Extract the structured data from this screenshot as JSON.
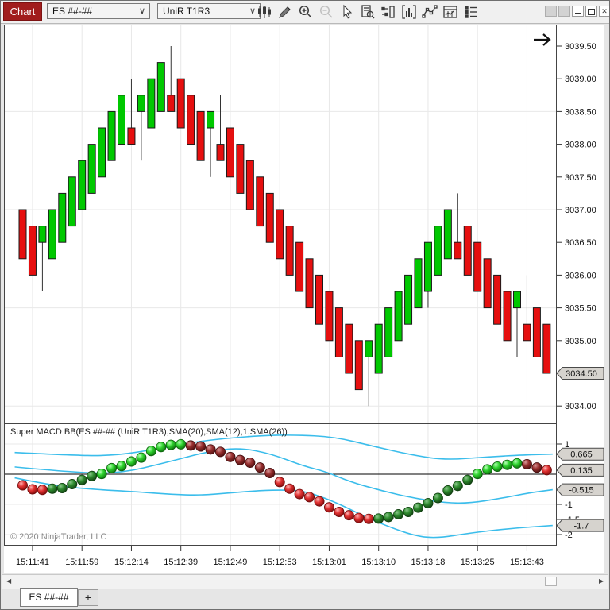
{
  "window": {
    "buttons": [
      {
        "name": "blank-left",
        "glyph": ""
      },
      {
        "name": "blank-right",
        "glyph": ""
      },
      {
        "name": "minimize",
        "glyph": "minimize"
      },
      {
        "name": "restore",
        "glyph": "restore"
      },
      {
        "name": "close",
        "glyph": "x"
      }
    ]
  },
  "toolbar": {
    "chart_tab_label": "Chart",
    "instrument_value": "ES ##-##",
    "bartype_value": "UniR T1R3",
    "chevron": "∨",
    "icons": [
      "chart-style",
      "drawing-tools",
      "zoom-in",
      "zoom-out",
      "pointer",
      "data-box",
      "chart-trader",
      "indicators",
      "draw-line",
      "chart-properties",
      "data-series"
    ]
  },
  "tabs": {
    "active_label": "ES ##-##",
    "add_label": "+"
  },
  "indicator_panel": {
    "label": "Super MACD BB(ES ##-## (UniR T1R3),SMA(20),SMA(12),1,SMA(26))",
    "copyright": "© 2020 NinjaTrader, LLC"
  },
  "chart_data": {
    "type": "candlestick",
    "instrument": "ES ##-##",
    "bar_type": "UniR T1R3",
    "colors": {
      "up": "#00c800",
      "down": "#e60f0f",
      "band": "#3bbdeb",
      "grid": "#e8e8e8",
      "marker_fill": "#d6d3ce"
    },
    "price_axis": {
      "min": 3034.0,
      "max": 3039.5,
      "tick_step": 0.5,
      "gridlines": [
        3038.5,
        3037.0,
        3035.5,
        3034.0
      ],
      "marker_value": 3034.5,
      "marker_label": "3034.50"
    },
    "bars": [
      [
        3037.0,
        3037.0,
        3036.25,
        3036.25
      ],
      [
        3036.75,
        3036.75,
        3036.0,
        3036.0
      ],
      [
        3036.5,
        3036.75,
        3035.75,
        3036.75
      ],
      [
        3036.25,
        3037.0,
        3036.25,
        3037.0
      ],
      [
        3036.5,
        3037.25,
        3036.5,
        3037.25
      ],
      [
        3036.75,
        3037.5,
        3036.75,
        3037.5
      ],
      [
        3037.0,
        3037.75,
        3037.0,
        3037.75
      ],
      [
        3037.25,
        3038.0,
        3037.25,
        3038.0
      ],
      [
        3037.5,
        3038.25,
        3037.5,
        3038.25
      ],
      [
        3037.75,
        3038.5,
        3037.75,
        3038.5
      ],
      [
        3038.0,
        3038.75,
        3038.0,
        3038.75
      ],
      [
        3038.25,
        3039.0,
        3038.0,
        3038.0
      ],
      [
        3038.5,
        3038.75,
        3037.75,
        3038.75
      ],
      [
        3038.25,
        3039.0,
        3038.25,
        3039.0
      ],
      [
        3038.5,
        3039.25,
        3038.5,
        3039.25
      ],
      [
        3038.75,
        3039.5,
        3038.5,
        3038.5
      ],
      [
        3039.0,
        3039.0,
        3038.25,
        3038.25
      ],
      [
        3038.75,
        3038.75,
        3038.0,
        3038.0
      ],
      [
        3038.5,
        3038.5,
        3037.75,
        3037.75
      ],
      [
        3038.25,
        3038.5,
        3037.5,
        3038.5
      ],
      [
        3038.0,
        3038.75,
        3037.75,
        3037.75
      ],
      [
        3038.25,
        3038.25,
        3037.5,
        3037.5
      ],
      [
        3038.0,
        3038.0,
        3037.25,
        3037.25
      ],
      [
        3037.75,
        3037.75,
        3037.0,
        3037.0
      ],
      [
        3037.5,
        3037.5,
        3036.75,
        3036.75
      ],
      [
        3037.25,
        3037.25,
        3036.5,
        3036.5
      ],
      [
        3037.0,
        3037.0,
        3036.25,
        3036.25
      ],
      [
        3036.75,
        3036.75,
        3036.0,
        3036.0
      ],
      [
        3036.5,
        3036.5,
        3035.75,
        3035.75
      ],
      [
        3036.25,
        3036.25,
        3035.5,
        3035.5
      ],
      [
        3036.0,
        3036.0,
        3035.25,
        3035.25
      ],
      [
        3035.75,
        3035.75,
        3035.0,
        3035.0
      ],
      [
        3035.5,
        3035.5,
        3034.75,
        3034.75
      ],
      [
        3035.25,
        3035.25,
        3034.5,
        3034.5
      ],
      [
        3035.0,
        3035.0,
        3034.25,
        3034.25
      ],
      [
        3034.75,
        3035.0,
        3034.0,
        3035.0
      ],
      [
        3034.5,
        3035.25,
        3034.5,
        3035.25
      ],
      [
        3034.75,
        3035.5,
        3034.75,
        3035.5
      ],
      [
        3035.0,
        3035.75,
        3035.0,
        3035.75
      ],
      [
        3035.25,
        3036.0,
        3035.25,
        3036.0
      ],
      [
        3035.5,
        3036.25,
        3035.5,
        3036.25
      ],
      [
        3035.75,
        3036.5,
        3035.5,
        3036.5
      ],
      [
        3036.0,
        3036.75,
        3036.0,
        3036.75
      ],
      [
        3036.25,
        3037.0,
        3036.25,
        3037.0
      ],
      [
        3036.5,
        3037.25,
        3036.25,
        3036.25
      ],
      [
        3036.75,
        3036.75,
        3036.0,
        3036.0
      ],
      [
        3036.5,
        3036.5,
        3035.75,
        3035.75
      ],
      [
        3036.25,
        3036.25,
        3035.5,
        3035.5
      ],
      [
        3036.0,
        3036.0,
        3035.25,
        3035.25
      ],
      [
        3035.75,
        3035.75,
        3035.0,
        3035.0
      ],
      [
        3035.5,
        3035.75,
        3034.75,
        3035.75
      ],
      [
        3035.25,
        3036.0,
        3035.0,
        3035.0
      ],
      [
        3035.5,
        3035.5,
        3034.75,
        3034.75
      ],
      [
        3035.25,
        3035.25,
        3034.5,
        3034.5
      ]
    ],
    "time_ticks": [
      {
        "bar": 2,
        "label": "15:11:41"
      },
      {
        "bar": 7,
        "label": "15:11:59"
      },
      {
        "bar": 12,
        "label": "15:12:14"
      },
      {
        "bar": 17,
        "label": "15:12:39"
      },
      {
        "bar": 22,
        "label": "15:12:49"
      },
      {
        "bar": 27,
        "label": "15:12:53"
      },
      {
        "bar": 32,
        "label": "15:13:01"
      },
      {
        "bar": 37,
        "label": "15:13:10"
      },
      {
        "bar": 42,
        "label": "15:13:18"
      },
      {
        "bar": 47,
        "label": "15:13:25"
      },
      {
        "bar": 52,
        "label": "15:13:43"
      }
    ],
    "indicator": {
      "name": "Super MACD BB",
      "axis_ticks": [
        {
          "v": 1,
          "label": "1"
        },
        {
          "v": -1,
          "label": "-1"
        },
        {
          "v": -1.5,
          "label": "-1.5"
        },
        {
          "v": -2,
          "label": "-2"
        }
      ],
      "gridlines": [
        1,
        -1,
        -2
      ],
      "zero_line": 0,
      "macd_dots": [
        -0.37,
        -0.5,
        -0.52,
        -0.48,
        -0.46,
        -0.33,
        -0.19,
        -0.06,
        0.01,
        0.2,
        0.27,
        0.42,
        0.55,
        0.77,
        0.9,
        0.97,
        0.99,
        0.95,
        0.92,
        0.82,
        0.74,
        0.57,
        0.47,
        0.38,
        0.22,
        0.04,
        -0.26,
        -0.48,
        -0.66,
        -0.76,
        -0.9,
        -1.1,
        -1.25,
        -1.36,
        -1.45,
        -1.48,
        -1.47,
        -1.42,
        -1.33,
        -1.25,
        -1.11,
        -0.96,
        -0.79,
        -0.54,
        -0.39,
        -0.19,
        0.01,
        0.16,
        0.25,
        0.31,
        0.36,
        0.33,
        0.22,
        0.135
      ],
      "bands": {
        "upper": [
          [
            -0.8,
            0.72
          ],
          [
            4.2,
            0.64
          ],
          [
            9,
            0.6
          ],
          [
            13.9,
            0.85
          ],
          [
            17.1,
            1.05
          ],
          [
            20.3,
            1.18
          ],
          [
            24.3,
            1.28
          ],
          [
            27.5,
            1.3
          ],
          [
            31.5,
            1.24
          ],
          [
            35.5,
            0.92
          ],
          [
            39.6,
            0.62
          ],
          [
            42.8,
            0.47
          ],
          [
            46.8,
            0.57
          ],
          [
            50.8,
            0.64
          ],
          [
            53.6,
            0.665
          ]
        ],
        "middle": [
          [
            -0.8,
            0.24
          ],
          [
            5,
            0.06
          ],
          [
            9.8,
            0.02
          ],
          [
            14.7,
            0.4
          ],
          [
            18.7,
            0.75
          ],
          [
            21.9,
            0.88
          ],
          [
            25.1,
            0.68
          ],
          [
            28.3,
            0.28
          ],
          [
            30.7,
            0.08
          ],
          [
            33.1,
            -0.25
          ],
          [
            36.3,
            -0.55
          ],
          [
            39.6,
            -0.8
          ],
          [
            42.8,
            -0.95
          ],
          [
            45.2,
            -0.96
          ],
          [
            48.4,
            -0.8
          ],
          [
            51.2,
            -0.62
          ],
          [
            53.6,
            -0.515
          ]
        ],
        "lower": [
          [
            -0.8,
            -0.12
          ],
          [
            2.9,
            -0.37
          ],
          [
            7,
            -0.5
          ],
          [
            11.8,
            -0.59
          ],
          [
            15,
            -0.67
          ],
          [
            18,
            -0.7
          ],
          [
            21,
            -0.62
          ],
          [
            24,
            -0.54
          ],
          [
            26.5,
            -0.52
          ],
          [
            28.5,
            -0.56
          ],
          [
            31.5,
            -0.9
          ],
          [
            35.5,
            -1.55
          ],
          [
            39.6,
            -2.05
          ],
          [
            42,
            -2.12
          ],
          [
            45.2,
            -1.95
          ],
          [
            49.2,
            -1.8
          ],
          [
            53.6,
            -1.7
          ]
        ]
      },
      "markers": [
        {
          "value": 0.665,
          "label": "0.665"
        },
        {
          "value": 0.135,
          "label": "0.135"
        },
        {
          "value": -0.515,
          "label": "-0.515"
        },
        {
          "value": -1.7,
          "label": "-1.7"
        }
      ]
    }
  }
}
